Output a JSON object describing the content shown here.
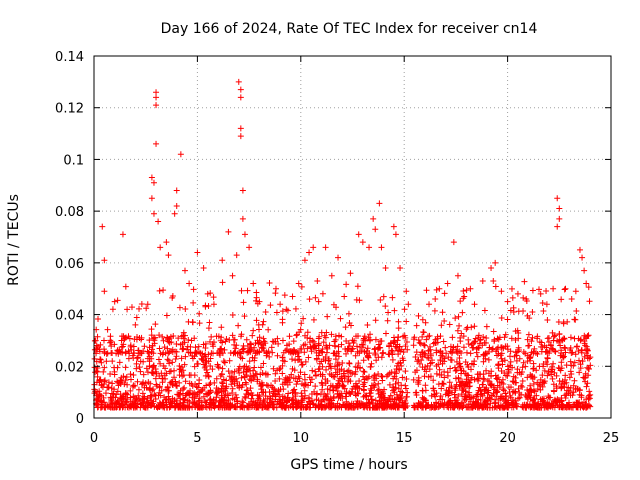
{
  "chart_data": {
    "type": "scatter",
    "title": "Day 166 of 2024, Rate Of TEC Index for receiver cn14",
    "xlabel": "GPS time / hours",
    "ylabel": "ROTI / TECUs",
    "xlim": [
      0,
      25
    ],
    "ylim": [
      0,
      0.14
    ],
    "xticks": [
      0,
      5,
      10,
      15,
      20,
      25
    ],
    "yticks": [
      0,
      0.02,
      0.04,
      0.06,
      0.08,
      0.1,
      0.12,
      0.14
    ],
    "xtick_labels": [
      "0",
      "5",
      "10",
      "15",
      "20",
      "25"
    ],
    "ytick_labels": [
      "0",
      "0.02",
      "0.04",
      "0.06",
      "0.08",
      "0.1",
      "0.12",
      "0.14"
    ],
    "grid": true,
    "marker": "+",
    "color": "#ff0000",
    "series": [
      {
        "name": "ROTI",
        "points": [
          [
            0.1,
            0.025
          ],
          [
            0.4,
            0.074
          ],
          [
            0.5,
            0.061
          ],
          [
            0.5,
            0.049
          ],
          [
            1.0,
            0.045
          ],
          [
            1.4,
            0.071
          ],
          [
            1.6,
            0.042
          ],
          [
            2.0,
            0.036
          ],
          [
            2.3,
            0.031
          ],
          [
            2.6,
            0.044
          ],
          [
            2.8,
            0.093
          ],
          [
            2.9,
            0.091
          ],
          [
            2.8,
            0.085
          ],
          [
            2.9,
            0.079
          ],
          [
            3.0,
            0.126
          ],
          [
            3.0,
            0.124
          ],
          [
            3.0,
            0.121
          ],
          [
            3.0,
            0.106
          ],
          [
            3.1,
            0.076
          ],
          [
            3.2,
            0.066
          ],
          [
            3.5,
            0.068
          ],
          [
            3.6,
            0.063
          ],
          [
            3.9,
            0.079
          ],
          [
            4.0,
            0.088
          ],
          [
            4.0,
            0.082
          ],
          [
            4.2,
            0.102
          ],
          [
            4.4,
            0.057
          ],
          [
            4.6,
            0.052
          ],
          [
            5.0,
            0.064
          ],
          [
            5.3,
            0.058
          ],
          [
            5.5,
            0.048
          ],
          [
            5.8,
            0.044
          ],
          [
            6.2,
            0.061
          ],
          [
            6.5,
            0.072
          ],
          [
            6.7,
            0.055
          ],
          [
            6.9,
            0.063
          ],
          [
            7.0,
            0.13
          ],
          [
            7.1,
            0.127
          ],
          [
            7.1,
            0.124
          ],
          [
            7.1,
            0.112
          ],
          [
            7.1,
            0.109
          ],
          [
            7.2,
            0.088
          ],
          [
            7.2,
            0.077
          ],
          [
            7.3,
            0.071
          ],
          [
            7.5,
            0.066
          ],
          [
            7.7,
            0.052
          ],
          [
            8.0,
            0.045
          ],
          [
            8.3,
            0.041
          ],
          [
            8.8,
            0.05
          ],
          [
            9.0,
            0.044
          ],
          [
            9.3,
            0.042
          ],
          [
            9.6,
            0.047
          ],
          [
            9.9,
            0.052
          ],
          [
            10.2,
            0.061
          ],
          [
            10.4,
            0.064
          ],
          [
            10.6,
            0.066
          ],
          [
            10.8,
            0.053
          ],
          [
            11.2,
            0.066
          ],
          [
            11.5,
            0.055
          ],
          [
            11.8,
            0.062
          ],
          [
            12.1,
            0.047
          ],
          [
            12.4,
            0.056
          ],
          [
            12.8,
            0.071
          ],
          [
            13.0,
            0.068
          ],
          [
            13.3,
            0.066
          ],
          [
            13.5,
            0.077
          ],
          [
            13.6,
            0.073
          ],
          [
            13.8,
            0.083
          ],
          [
            13.9,
            0.066
          ],
          [
            14.1,
            0.058
          ],
          [
            14.5,
            0.074
          ],
          [
            14.6,
            0.071
          ],
          [
            14.8,
            0.058
          ],
          [
            15.1,
            0.049
          ],
          [
            15.2,
            0.044
          ],
          [
            15.9,
            0.038
          ],
          [
            16.2,
            0.044
          ],
          [
            16.5,
            0.046
          ],
          [
            16.7,
            0.05
          ],
          [
            17.1,
            0.052
          ],
          [
            17.4,
            0.068
          ],
          [
            17.6,
            0.055
          ],
          [
            17.9,
            0.047
          ],
          [
            18.2,
            0.05
          ],
          [
            18.4,
            0.044
          ],
          [
            18.8,
            0.053
          ],
          [
            19.2,
            0.058
          ],
          [
            19.4,
            0.06
          ],
          [
            19.7,
            0.049
          ],
          [
            20.0,
            0.045
          ],
          [
            20.3,
            0.041
          ],
          [
            20.5,
            0.048
          ],
          [
            20.9,
            0.046
          ],
          [
            21.2,
            0.041
          ],
          [
            21.6,
            0.048
          ],
          [
            21.9,
            0.044
          ],
          [
            22.2,
            0.05
          ],
          [
            22.4,
            0.085
          ],
          [
            22.5,
            0.081
          ],
          [
            22.5,
            0.077
          ],
          [
            22.4,
            0.074
          ],
          [
            22.8,
            0.05
          ],
          [
            23.1,
            0.046
          ],
          [
            23.3,
            0.049
          ],
          [
            23.5,
            0.065
          ],
          [
            23.6,
            0.062
          ],
          [
            23.7,
            0.057
          ],
          [
            23.8,
            0.052
          ]
        ]
      }
    ],
    "background_noise": {
      "description": "dense cloud of ROTI values between 0.004 and ~0.035 across 0–24 h",
      "x_range": [
        0,
        24
      ],
      "y_min": 0.004,
      "typical_max": 0.032,
      "gap_near_hours": 15.3
    }
  }
}
